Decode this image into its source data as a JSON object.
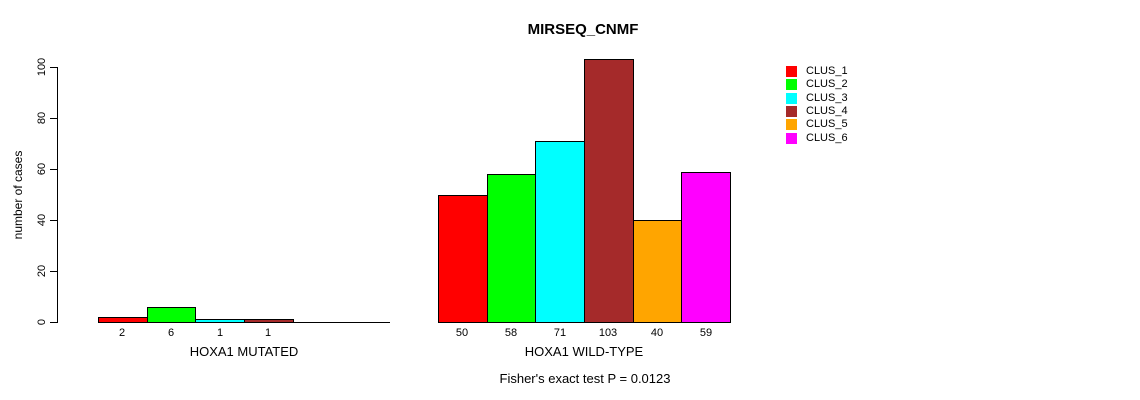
{
  "chart_data": {
    "type": "bar",
    "title": "MIRSEQ_CNMF",
    "ylabel": "number of cases",
    "xlabel": "",
    "ylim": [
      0,
      100
    ],
    "yticks": [
      0,
      20,
      40,
      60,
      80,
      100
    ],
    "grid": false,
    "legend_position": "right",
    "legend": [
      {
        "name": "CLUS_1",
        "color": "#FF0000"
      },
      {
        "name": "CLUS_2",
        "color": "#00FF00"
      },
      {
        "name": "CLUS_3",
        "color": "#00FFFF"
      },
      {
        "name": "CLUS_4",
        "color": "#A52A2A"
      },
      {
        "name": "CLUS_5",
        "color": "#FFA500"
      },
      {
        "name": "CLUS_6",
        "color": "#FF00FF"
      }
    ],
    "groups": [
      {
        "label": "HOXA1 MUTATED",
        "series_names": [
          "CLUS_1",
          "CLUS_2",
          "CLUS_3",
          "CLUS_4",
          "CLUS_5",
          "CLUS_6"
        ],
        "values": [
          2,
          6,
          1,
          1,
          0,
          0
        ],
        "value_labels": [
          "2",
          "6",
          "1",
          "1",
          "",
          ""
        ]
      },
      {
        "label": "HOXA1 WILD-TYPE",
        "series_names": [
          "CLUS_1",
          "CLUS_2",
          "CLUS_3",
          "CLUS_4",
          "CLUS_5",
          "CLUS_6"
        ],
        "values": [
          50,
          58,
          71,
          103,
          40,
          59
        ],
        "value_labels": [
          "50",
          "58",
          "71",
          "103",
          "40",
          "59"
        ]
      }
    ],
    "annotation": "Fisher's exact test P = 0.0123"
  }
}
